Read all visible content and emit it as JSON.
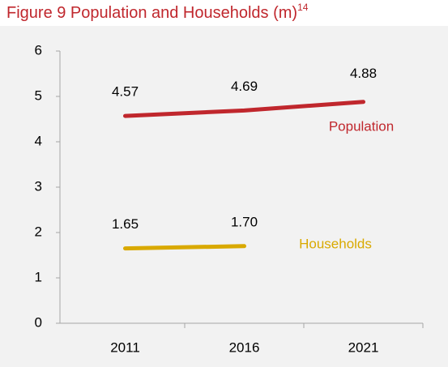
{
  "chart_data": {
    "type": "line",
    "title": "Figure 9 Population and Households (m)",
    "title_note": "14",
    "categories": [
      "2011",
      "2016",
      "2021"
    ],
    "series": [
      {
        "name": "Population",
        "color": "#c0272d",
        "values": [
          4.57,
          4.69,
          4.88
        ]
      },
      {
        "name": "Households",
        "color": "#d9a900",
        "values": [
          1.65,
          1.7,
          null
        ],
        "value_labels": [
          "1.65",
          "1.70",
          null
        ]
      }
    ],
    "ylim": [
      0,
      6
    ],
    "yticks": [
      0,
      1,
      2,
      3,
      4,
      5,
      6
    ],
    "grid": false
  }
}
